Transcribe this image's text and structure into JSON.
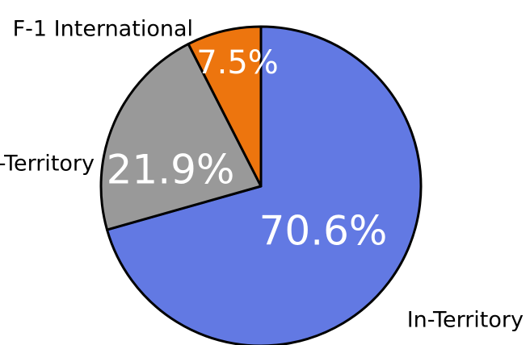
{
  "chart_data": {
    "type": "pie",
    "categories": [
      "In-Territory",
      "Out-of-Territory",
      "F-1 International"
    ],
    "values": [
      70.6,
      21.9,
      7.5
    ],
    "value_labels": [
      "70.6%",
      "21.9%",
      "7.5%"
    ],
    "colors": [
      "#6279E3",
      "#999999",
      "#ED750E"
    ],
    "start_angle": "12 o'clock",
    "direction": "clockwise",
    "title": "",
    "legend": "none"
  }
}
